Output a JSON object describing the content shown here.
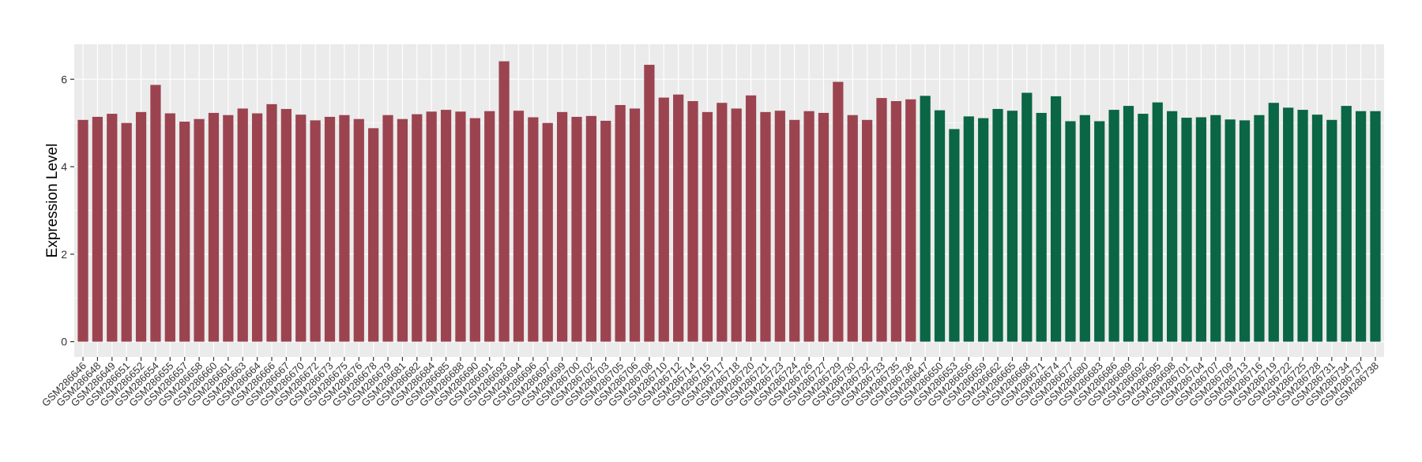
{
  "chart_data": {
    "type": "bar",
    "title": "",
    "xlabel": "",
    "ylabel": "Expression Level",
    "ylim": [
      -0.35,
      6.8
    ],
    "yticks": [
      0,
      2,
      4,
      6
    ],
    "grid": true,
    "legend": "none",
    "background_color": "#EBEBEB",
    "grid_color": "#FFFFFF",
    "categories": [
      "GSM286646",
      "GSM286648",
      "GSM286649",
      "GSM286651",
      "GSM286652",
      "GSM286654",
      "GSM286655",
      "GSM286657",
      "GSM286658",
      "GSM286660",
      "GSM286661",
      "GSM286663",
      "GSM286664",
      "GSM286666",
      "GSM286667",
      "GSM286670",
      "GSM286672",
      "GSM286673",
      "GSM286675",
      "GSM286676",
      "GSM286678",
      "GSM286679",
      "GSM286681",
      "GSM286682",
      "GSM286684",
      "GSM286685",
      "GSM286688",
      "GSM286690",
      "GSM286691",
      "GSM286693",
      "GSM286694",
      "GSM286696",
      "GSM286697",
      "GSM286699",
      "GSM286700",
      "GSM286702",
      "GSM286703",
      "GSM286705",
      "GSM286706",
      "GSM286708",
      "GSM286710",
      "GSM286712",
      "GSM286714",
      "GSM286715",
      "GSM286717",
      "GSM286718",
      "GSM286720",
      "GSM286721",
      "GSM286723",
      "GSM286724",
      "GSM286726",
      "GSM286727",
      "GSM286729",
      "GSM286730",
      "GSM286732",
      "GSM286733",
      "GSM286735",
      "GSM286736",
      "GSM286647",
      "GSM286650",
      "GSM286653",
      "GSM286656",
      "GSM286659",
      "GSM286662",
      "GSM286665",
      "GSM286668",
      "GSM286671",
      "GSM286674",
      "GSM286677",
      "GSM286680",
      "GSM286683",
      "GSM286686",
      "GSM286689",
      "GSM286692",
      "GSM286695",
      "GSM286698",
      "GSM286701",
      "GSM286704",
      "GSM286707",
      "GSM286709",
      "GSM286713",
      "GSM286716",
      "GSM286719",
      "GSM286722",
      "GSM286725",
      "GSM286728",
      "GSM286731",
      "GSM286734",
      "GSM286737",
      "GSM286738"
    ],
    "values": [
      5.07,
      5.14,
      5.21,
      5.0,
      5.25,
      5.87,
      5.22,
      5.03,
      5.09,
      5.23,
      5.18,
      5.33,
      5.22,
      5.43,
      5.32,
      5.19,
      5.06,
      5.14,
      5.18,
      5.09,
      4.88,
      5.18,
      5.09,
      5.2,
      5.26,
      5.3,
      5.26,
      5.11,
      5.27,
      6.41,
      5.28,
      5.13,
      5.0,
      5.25,
      5.14,
      5.16,
      5.05,
      5.41,
      5.33,
      6.33,
      5.58,
      5.65,
      5.5,
      5.25,
      5.46,
      5.33,
      5.63,
      5.25,
      5.28,
      5.07,
      5.27,
      5.23,
      5.94,
      5.18,
      5.07,
      5.57,
      5.5,
      5.54,
      5.62,
      5.29,
      4.86,
      5.15,
      5.11,
      5.32,
      5.28,
      5.69,
      5.23,
      5.61,
      5.04,
      5.18,
      5.04,
      5.3,
      5.39,
      5.21,
      5.47,
      5.27,
      5.12,
      5.13,
      5.18,
      5.08,
      5.06,
      5.18,
      5.46,
      5.35,
      5.3,
      5.19,
      5.07,
      5.39,
      5.27,
      5.27
    ],
    "group_colors": [
      "#9B4450",
      "#0A6645"
    ],
    "group_sizes": [
      58,
      32
    ]
  }
}
